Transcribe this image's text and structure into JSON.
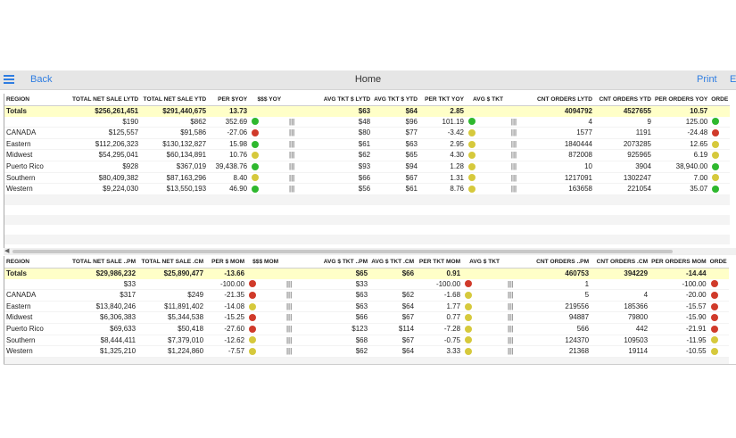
{
  "toolbar": {
    "back_label": "Back",
    "title": "Home",
    "print_label": "Print",
    "more_label": "E"
  },
  "colors": {
    "green": "#2eb82e",
    "yellow": "#d6c93c",
    "red": "#d03a2a",
    "accent": "#2f7de1",
    "totals_bg": "#ffffc8"
  },
  "table1": {
    "headers": [
      "Region",
      "Total Net Sale LYTD",
      "Total Net Sale YTD",
      "Per $YoY",
      "$$$ YoY",
      "",
      "Avg Tkt $ LYTD",
      "Avg Tkt $ YTD",
      "Per Tkt YoY",
      "Avg $ Tkt",
      "",
      "Cnt Orders LYTD",
      "Cnt Orders YTD",
      "Per Orders YoY",
      "Orde"
    ],
    "rows": [
      {
        "region": "Totals",
        "a": "$256,261,451",
        "b": "$291,440,675",
        "c": "13.73",
        "cs": "",
        "d": "$63",
        "e": "$64",
        "f": "2.85",
        "fs": "",
        "g": "4094792",
        "h": "4527655",
        "i": "10.57",
        "is": "",
        "totals": true
      },
      {
        "region": "",
        "a": "$190",
        "b": "$862",
        "c": "352.69",
        "cs": "green",
        "d": "$48",
        "e": "$96",
        "f": "101.19",
        "fs": "green",
        "g": "4",
        "h": "9",
        "i": "125.00",
        "is": "green"
      },
      {
        "region": "CANADA",
        "a": "$125,557",
        "b": "$91,586",
        "c": "-27.06",
        "cs": "red",
        "d": "$80",
        "e": "$77",
        "f": "-3.42",
        "fs": "yellow",
        "g": "1577",
        "h": "1191",
        "i": "-24.48",
        "is": "red"
      },
      {
        "region": "Eastern",
        "a": "$112,206,323",
        "b": "$130,132,827",
        "c": "15.98",
        "cs": "green",
        "d": "$61",
        "e": "$63",
        "f": "2.95",
        "fs": "yellow",
        "g": "1840444",
        "h": "2073285",
        "i": "12.65",
        "is": "yellow"
      },
      {
        "region": "Midwest",
        "a": "$54,295,041",
        "b": "$60,134,891",
        "c": "10.76",
        "cs": "yellow",
        "d": "$62",
        "e": "$65",
        "f": "4.30",
        "fs": "yellow",
        "g": "872008",
        "h": "925965",
        "i": "6.19",
        "is": "yellow"
      },
      {
        "region": "Puerto Rico",
        "a": "$928",
        "b": "$367,019",
        "c": "39,438.76",
        "cs": "green",
        "d": "$93",
        "e": "$94",
        "f": "1.28",
        "fs": "yellow",
        "g": "10",
        "h": "3904",
        "i": "38,940.00",
        "is": "green"
      },
      {
        "region": "Southern",
        "a": "$80,409,382",
        "b": "$87,163,296",
        "c": "8.40",
        "cs": "yellow",
        "d": "$66",
        "e": "$67",
        "f": "1.31",
        "fs": "yellow",
        "g": "1217091",
        "h": "1302247",
        "i": "7.00",
        "is": "yellow"
      },
      {
        "region": "Western",
        "a": "$9,224,030",
        "b": "$13,550,193",
        "c": "46.90",
        "cs": "green",
        "d": "$56",
        "e": "$61",
        "f": "8.76",
        "fs": "yellow",
        "g": "163658",
        "h": "221054",
        "i": "35.07",
        "is": "green"
      }
    ]
  },
  "table2": {
    "headers": [
      "Region",
      "Total Net Sale ..PM",
      "Total Net Sale .CM",
      "Per $ MoM",
      "$$$ MoM",
      "",
      "Avg $ Tkt ..PM",
      "Avg $ Tkt .CM",
      "Per Tkt MoM",
      "Avg $ Tkt",
      "",
      "Cnt Orders ..PM",
      "Cnt Orders .CM",
      "Per Orders MoM",
      "Orde"
    ],
    "rows": [
      {
        "region": "Totals",
        "a": "$29,986,232",
        "b": "$25,890,477",
        "c": "-13.66",
        "cs": "",
        "d": "$65",
        "e": "$66",
        "f": "0.91",
        "fs": "",
        "g": "460753",
        "h": "394229",
        "i": "-14.44",
        "is": "",
        "totals": true
      },
      {
        "region": "",
        "a": "$33",
        "b": "",
        "c": "-100.00",
        "cs": "red",
        "d": "$33",
        "e": "",
        "f": "-100.00",
        "fs": "red",
        "g": "1",
        "h": "",
        "i": "-100.00",
        "is": "red"
      },
      {
        "region": "CANADA",
        "a": "$317",
        "b": "$249",
        "c": "-21.35",
        "cs": "red",
        "d": "$63",
        "e": "$62",
        "f": "-1.68",
        "fs": "yellow",
        "g": "5",
        "h": "4",
        "i": "-20.00",
        "is": "red"
      },
      {
        "region": "Eastern",
        "a": "$13,840,246",
        "b": "$11,891,402",
        "c": "-14.08",
        "cs": "yellow",
        "d": "$63",
        "e": "$64",
        "f": "1.77",
        "fs": "yellow",
        "g": "219556",
        "h": "185366",
        "i": "-15.57",
        "is": "red"
      },
      {
        "region": "Midwest",
        "a": "$6,306,383",
        "b": "$5,344,538",
        "c": "-15.25",
        "cs": "red",
        "d": "$66",
        "e": "$67",
        "f": "0.77",
        "fs": "yellow",
        "g": "94887",
        "h": "79800",
        "i": "-15.90",
        "is": "red"
      },
      {
        "region": "Puerto Rico",
        "a": "$69,633",
        "b": "$50,418",
        "c": "-27.60",
        "cs": "red",
        "d": "$123",
        "e": "$114",
        "f": "-7.28",
        "fs": "yellow",
        "g": "566",
        "h": "442",
        "i": "-21.91",
        "is": "red"
      },
      {
        "region": "Southern",
        "a": "$8,444,411",
        "b": "$7,379,010",
        "c": "-12.62",
        "cs": "yellow",
        "d": "$68",
        "e": "$67",
        "f": "-0.75",
        "fs": "yellow",
        "g": "124370",
        "h": "109503",
        "i": "-11.95",
        "is": "yellow"
      },
      {
        "region": "Western",
        "a": "$1,325,210",
        "b": "$1,224,860",
        "c": "-7.57",
        "cs": "yellow",
        "d": "$62",
        "e": "$64",
        "f": "3.33",
        "fs": "yellow",
        "g": "21368",
        "h": "19114",
        "i": "-10.55",
        "is": "yellow"
      }
    ]
  },
  "bars_glyph": "|||"
}
